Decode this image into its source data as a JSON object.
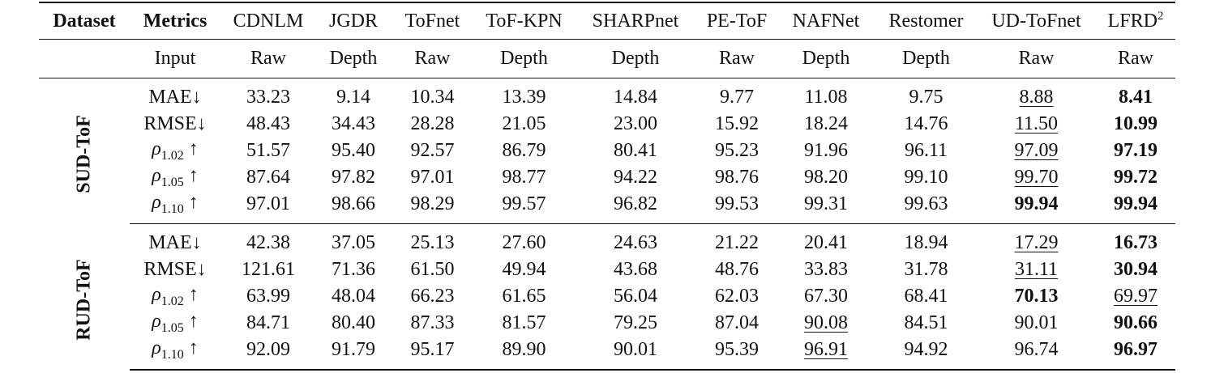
{
  "table": {
    "columns": [
      "Dataset",
      "Metrics",
      "CDNLM",
      "JGDR",
      "ToFnet",
      "ToF-KPN",
      "SHARPnet",
      "PE-ToF",
      "NAFNet",
      "Restomer",
      "UD-ToFnet",
      "LFRD"
    ],
    "header_superscript": "2",
    "input_row": [
      "Input",
      "Raw",
      "Depth",
      "Raw",
      "Depth",
      "Depth",
      "Raw",
      "Depth",
      "Depth",
      "Raw",
      "Raw"
    ],
    "groups": [
      {
        "name": "SUD-ToF",
        "rows": [
          {
            "metric": {
              "name": "MAE",
              "arrow": "↓"
            },
            "values": [
              "33.23",
              "9.14",
              "10.34",
              "13.39",
              "14.84",
              "9.77",
              "11.08",
              "9.75",
              "8.88",
              "8.41"
            ],
            "bold": [
              9
            ],
            "underline": [
              8
            ]
          },
          {
            "metric": {
              "name": "RMSE",
              "arrow": "↓"
            },
            "values": [
              "48.43",
              "34.43",
              "28.28",
              "21.05",
              "23.00",
              "15.92",
              "18.24",
              "14.76",
              "11.50",
              "10.99"
            ],
            "bold": [
              9
            ],
            "underline": [
              8
            ]
          },
          {
            "metric": {
              "name": "ρ",
              "sub": "1.02",
              "arrow": "↑"
            },
            "values": [
              "51.57",
              "95.40",
              "92.57",
              "86.79",
              "80.41",
              "95.23",
              "91.96",
              "96.11",
              "97.09",
              "97.19"
            ],
            "bold": [
              9
            ],
            "underline": [
              8
            ]
          },
          {
            "metric": {
              "name": "ρ",
              "sub": "1.05",
              "arrow": "↑"
            },
            "values": [
              "87.64",
              "97.82",
              "97.01",
              "98.77",
              "94.22",
              "98.76",
              "98.20",
              "99.10",
              "99.70",
              "99.72"
            ],
            "bold": [
              9
            ],
            "underline": [
              8
            ]
          },
          {
            "metric": {
              "name": "ρ",
              "sub": "1.10",
              "arrow": "↑"
            },
            "values": [
              "97.01",
              "98.66",
              "98.29",
              "99.57",
              "96.82",
              "99.53",
              "99.31",
              "99.63",
              "99.94",
              "99.94"
            ],
            "bold": [
              8,
              9
            ],
            "underline": []
          }
        ]
      },
      {
        "name": "RUD-ToF",
        "rows": [
          {
            "metric": {
              "name": "MAE",
              "arrow": "↓"
            },
            "values": [
              "42.38",
              "37.05",
              "25.13",
              "27.60",
              "24.63",
              "21.22",
              "20.41",
              "18.94",
              "17.29",
              "16.73"
            ],
            "bold": [
              9
            ],
            "underline": [
              8
            ]
          },
          {
            "metric": {
              "name": "RMSE",
              "arrow": "↓"
            },
            "values": [
              "121.61",
              "71.36",
              "61.50",
              "49.94",
              "43.68",
              "48.76",
              "33.83",
              "31.78",
              "31.11",
              "30.94"
            ],
            "bold": [
              9
            ],
            "underline": [
              8
            ]
          },
          {
            "metric": {
              "name": "ρ",
              "sub": "1.02",
              "arrow": "↑"
            },
            "values": [
              "63.99",
              "48.04",
              "66.23",
              "61.65",
              "56.04",
              "62.03",
              "67.30",
              "68.41",
              "70.13",
              "69.97"
            ],
            "bold": [
              8
            ],
            "underline": [
              9
            ]
          },
          {
            "metric": {
              "name": "ρ",
              "sub": "1.05",
              "arrow": "↑"
            },
            "values": [
              "84.71",
              "80.40",
              "87.33",
              "81.57",
              "79.25",
              "87.04",
              "90.08",
              "84.51",
              "90.01",
              "90.66"
            ],
            "bold": [
              9
            ],
            "underline": [
              6
            ]
          },
          {
            "metric": {
              "name": "ρ",
              "sub": "1.10",
              "arrow": "↑"
            },
            "values": [
              "92.09",
              "91.79",
              "95.17",
              "89.90",
              "90.01",
              "95.39",
              "96.91",
              "94.92",
              "96.74",
              "96.97"
            ],
            "bold": [
              9
            ],
            "underline": [
              6
            ]
          }
        ]
      }
    ]
  }
}
